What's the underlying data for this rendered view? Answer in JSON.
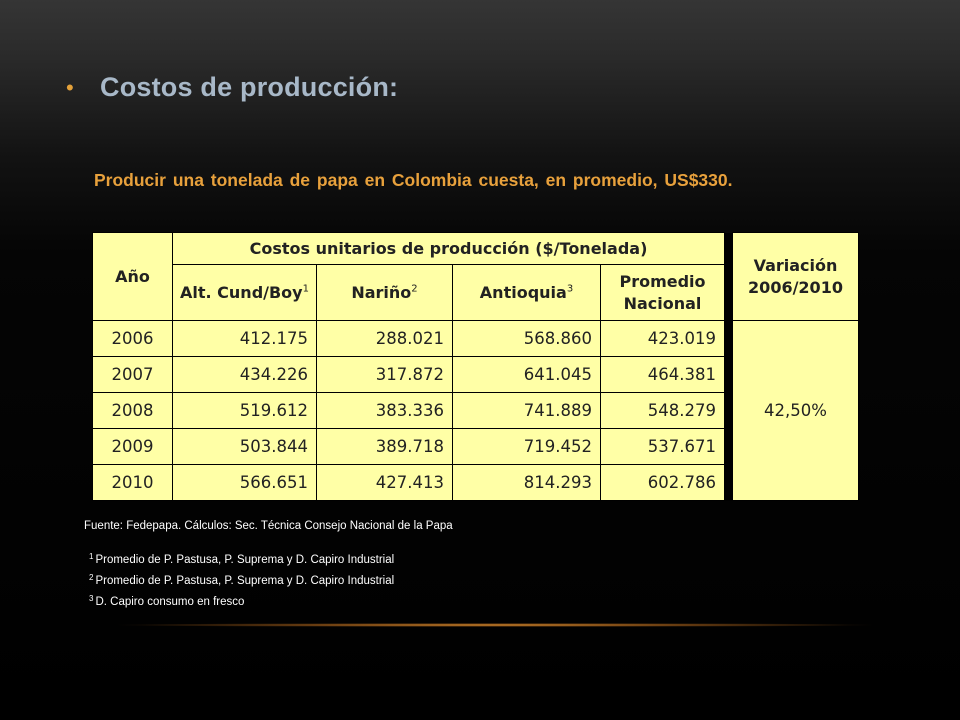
{
  "heading": {
    "bullet": "•",
    "title": "Costos de producción:"
  },
  "statement": "Producir una tonelada de papa en Colombia cuesta, en promedio, US$330.",
  "table": {
    "year_header": "Año",
    "group_header": "Costos unitarios de producción ($/Tonelada)",
    "columns": [
      {
        "label": "Alt. Cund/Boy",
        "sup": "1"
      },
      {
        "label": "Nariño",
        "sup": "2"
      },
      {
        "label": "Antioquia",
        "sup": "3"
      },
      {
        "label": "Promedio Nacional",
        "sup": ""
      }
    ],
    "variation_header": "Variación 2006/2010",
    "variation_value": "42,50%",
    "rows": [
      {
        "year": "2006",
        "alt": "412.175",
        "narino": "288.021",
        "antioquia": "568.860",
        "promedio": "423.019"
      },
      {
        "year": "2007",
        "alt": "434.226",
        "narino": "317.872",
        "antioquia": "641.045",
        "promedio": "464.381"
      },
      {
        "year": "2008",
        "alt": "519.612",
        "narino": "383.336",
        "antioquia": "741.889",
        "promedio": "548.279"
      },
      {
        "year": "2009",
        "alt": "503.844",
        "narino": "389.718",
        "antioquia": "719.452",
        "promedio": "537.671"
      },
      {
        "year": "2010",
        "alt": "566.651",
        "narino": "427.413",
        "antioquia": "814.293",
        "promedio": "602.786"
      }
    ]
  },
  "source": "Fuente: Fedepapa.  Cálculos: Sec. Técnica Consejo Nacional de la Papa",
  "notes": [
    {
      "num": "1",
      "text": "Promedio de P. Pastusa, P. Suprema   y  D. Capiro Industrial"
    },
    {
      "num": "2",
      "text": "Promedio de P. Pastusa, P. Suprema  y  D. Capiro Industrial"
    },
    {
      "num": "3",
      "text": "D. Capiro consumo en fresco"
    }
  ]
}
